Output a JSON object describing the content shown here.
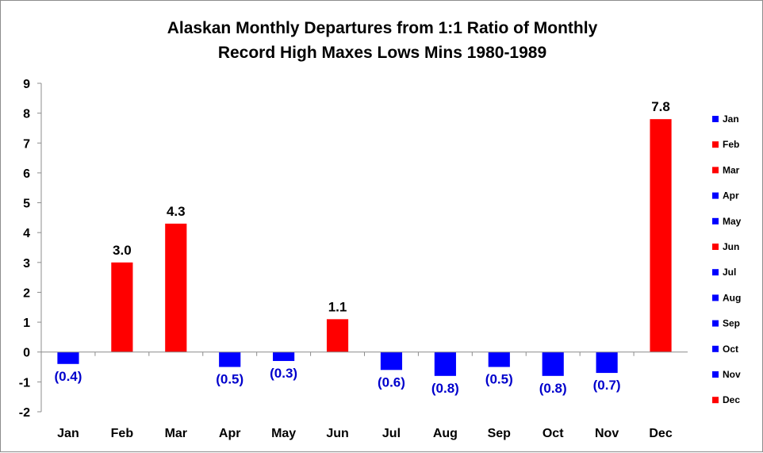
{
  "chart_data": {
    "type": "bar",
    "title_lines": [
      "Alaskan Monthly Departures from 1:1 Ratio of Monthly",
      "Record High Maxes Lows Mins 1980-1989"
    ],
    "categories": [
      "Jan",
      "Feb",
      "Mar",
      "Apr",
      "May",
      "Jun",
      "Jul",
      "Aug",
      "Sep",
      "Oct",
      "Nov",
      "Dec"
    ],
    "values": [
      -0.4,
      3.0,
      4.3,
      -0.5,
      -0.3,
      1.1,
      -0.6,
      -0.8,
      -0.5,
      -0.8,
      -0.7,
      7.8
    ],
    "data_labels": [
      "(0.4)",
      "3.0",
      "4.3",
      "(0.5)",
      "(0.3)",
      "1.1",
      "(0.6)",
      "(0.8)",
      "(0.5)",
      "(0.8)",
      "(0.7)",
      "7.8"
    ],
    "ylim": [
      -2,
      9
    ],
    "yticks": [
      -2,
      -1,
      0,
      1,
      2,
      3,
      4,
      5,
      6,
      7,
      8,
      9
    ],
    "ytick_labels": [
      "-2",
      "-1",
      "0",
      "1",
      "2",
      "3",
      "4",
      "5",
      "6",
      "7",
      "8",
      "9"
    ],
    "grid": false,
    "legend_position": "right",
    "legend_entries": [
      "Jan",
      "Feb",
      "Mar",
      "Apr",
      "May",
      "Jun",
      "Jul",
      "Aug",
      "Sep",
      "Oct",
      "Nov",
      "Dec"
    ],
    "colors": {
      "positive": "#ff0000",
      "negative": "#0000ff",
      "negative_label": "#0000cc",
      "positive_label": "#000000",
      "axis": "#8c8c8c"
    }
  }
}
